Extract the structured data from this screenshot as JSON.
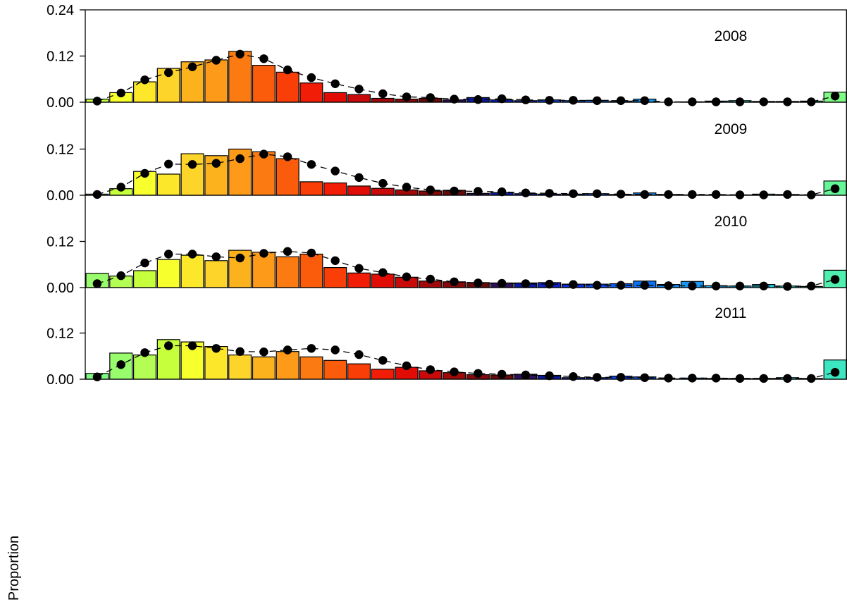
{
  "chart_data": {
    "type": "bar",
    "ylabel": "Proportion",
    "ylim": [
      0,
      0.24
    ],
    "yticks_top_panel": [
      "0.24",
      "0.12",
      "0.00"
    ],
    "yticks_other_panels": [
      "0.12",
      "0.00"
    ],
    "legend": "none",
    "grid": false,
    "panels": [
      {
        "year": "2008",
        "observed": [
          0.008,
          0.025,
          0.053,
          0.088,
          0.105,
          0.11,
          0.132,
          0.096,
          0.078,
          0.05,
          0.025,
          0.02,
          0.01,
          0.008,
          0.01,
          0.006,
          0.012,
          0.006,
          0.004,
          0.006,
          0.004,
          0.005,
          0.003,
          0.008,
          0.0,
          0.001,
          0.003,
          0.004,
          0.002,
          0.002,
          0.003,
          0.026
        ],
        "predicted": [
          0.003,
          0.024,
          0.058,
          0.077,
          0.092,
          0.109,
          0.125,
          0.113,
          0.084,
          0.064,
          0.048,
          0.034,
          0.022,
          0.014,
          0.012,
          0.008,
          0.007,
          0.009,
          0.006,
          0.005,
          0.005,
          0.004,
          0.004,
          0.004,
          0.001,
          0.001,
          0.001,
          0.001,
          0.001,
          0.001,
          0.001,
          0.016
        ]
      },
      {
        "year": "2009",
        "observed": [
          0.003,
          0.017,
          0.062,
          0.055,
          0.108,
          0.103,
          0.12,
          0.113,
          0.095,
          0.035,
          0.032,
          0.024,
          0.018,
          0.014,
          0.011,
          0.013,
          0.005,
          0.007,
          0.004,
          0.003,
          0.003,
          0.004,
          0.002,
          0.006,
          0.002,
          0.001,
          0.001,
          0.001,
          0.003,
          0.002,
          0.001,
          0.037
        ],
        "predicted": [
          0.002,
          0.021,
          0.057,
          0.081,
          0.08,
          0.083,
          0.095,
          0.107,
          0.1,
          0.08,
          0.063,
          0.046,
          0.031,
          0.021,
          0.014,
          0.011,
          0.01,
          0.009,
          0.006,
          0.005,
          0.004,
          0.004,
          0.003,
          0.002,
          0.002,
          0.002,
          0.002,
          0.001,
          0.001,
          0.002,
          0.001,
          0.017
        ]
      },
      {
        "year": "2010",
        "observed": [
          0.037,
          0.03,
          0.044,
          0.073,
          0.084,
          0.07,
          0.097,
          0.092,
          0.08,
          0.087,
          0.052,
          0.038,
          0.035,
          0.027,
          0.017,
          0.015,
          0.013,
          0.012,
          0.012,
          0.013,
          0.009,
          0.009,
          0.01,
          0.017,
          0.008,
          0.016,
          0.005,
          0.004,
          0.008,
          0.004,
          0.003,
          0.045
        ],
        "predicted": [
          0.01,
          0.031,
          0.064,
          0.087,
          0.087,
          0.08,
          0.077,
          0.089,
          0.094,
          0.09,
          0.07,
          0.05,
          0.039,
          0.028,
          0.022,
          0.015,
          0.012,
          0.011,
          0.01,
          0.009,
          0.008,
          0.006,
          0.006,
          0.006,
          0.005,
          0.004,
          0.004,
          0.004,
          0.004,
          0.003,
          0.004,
          0.021
        ]
      },
      {
        "year": "2011",
        "observed": [
          0.015,
          0.068,
          0.063,
          0.103,
          0.097,
          0.085,
          0.063,
          0.058,
          0.072,
          0.058,
          0.049,
          0.04,
          0.026,
          0.031,
          0.022,
          0.017,
          0.012,
          0.011,
          0.013,
          0.01,
          0.004,
          0.004,
          0.008,
          0.006,
          0.001,
          0.003,
          0.002,
          0.002,
          0.002,
          0.004,
          0.002,
          0.05
        ],
        "predicted": [
          0.006,
          0.038,
          0.069,
          0.087,
          0.087,
          0.08,
          0.072,
          0.071,
          0.076,
          0.08,
          0.076,
          0.064,
          0.049,
          0.035,
          0.025,
          0.019,
          0.015,
          0.013,
          0.011,
          0.009,
          0.007,
          0.005,
          0.005,
          0.004,
          0.003,
          0.003,
          0.003,
          0.002,
          0.002,
          0.002,
          0.002,
          0.018
        ]
      }
    ],
    "colors": {
      "bar_outline": "#000000",
      "predicted": "#000000",
      "bar_fill_by_year_offset": [
        "#c6ff3c",
        "#f7ff2d",
        "#fde72a",
        "#fdd42a",
        "#fcb21c",
        "#fd9a1a",
        "#fb7b12",
        "#fb5c0c",
        "#f93e07",
        "#f11d06",
        "#e20c06",
        "#c80a0a",
        "#a10a0a",
        "#870909",
        "#650b0b",
        "#2d0f5a",
        "#0a1a9c",
        "#0a22c8",
        "#0b2ed6",
        "#0b46e8",
        "#0a5ded",
        "#0a72f2",
        "#0d88f5",
        "#1798f5",
        "#1aa7f2",
        "#1eb7ec",
        "#24c8e1",
        "#2ed8d3",
        "#3be6c1",
        "#4ff0ad",
        "#64f797",
        "#7dfb82",
        "#99fc6c",
        "#b4fd55"
      ]
    }
  }
}
